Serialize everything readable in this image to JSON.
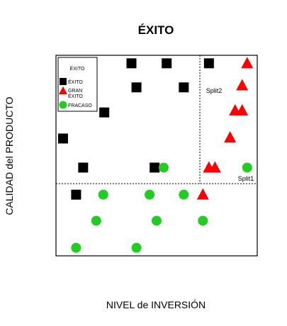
{
  "chart_data": {
    "type": "scatter",
    "title": "ÉXITO",
    "xlabel": "NIVEL de INVERSIÓN",
    "ylabel": "CALIDAD del PRODUCTO",
    "xlim": [
      0,
      20
    ],
    "ylim": [
      0,
      20
    ],
    "grid": false,
    "legend": {
      "title": "ÉXITO",
      "placement": "top-left",
      "entries": [
        {
          "label": "ÉXITO",
          "shape": "square",
          "color": "#000000"
        },
        {
          "label": "GRAN ÉXITO",
          "shape": "triangle",
          "color": "#ff0000"
        },
        {
          "label": "FRACASO",
          "shape": "circle",
          "color": "#22cc22"
        }
      ]
    },
    "splits": [
      {
        "label": "Split1",
        "orientation": "horizontal",
        "value": 7.2
      },
      {
        "label": "Split2",
        "orientation": "vertical",
        "value": 14.3,
        "from": 7.2,
        "to": 20
      }
    ],
    "series": [
      {
        "name": "ÉXITO",
        "shape": "square",
        "color": "#000000",
        "points": [
          {
            "x": 7.5,
            "y": 19.2
          },
          {
            "x": 11.0,
            "y": 19.2
          },
          {
            "x": 15.2,
            "y": 19.2
          },
          {
            "x": 8.0,
            "y": 16.8
          },
          {
            "x": 12.7,
            "y": 16.8
          },
          {
            "x": 4.8,
            "y": 14.3
          },
          {
            "x": 0.7,
            "y": 11.7
          },
          {
            "x": 2.7,
            "y": 8.8
          },
          {
            "x": 9.8,
            "y": 8.8
          },
          {
            "x": 2.0,
            "y": 6.1
          }
        ]
      },
      {
        "name": "GRAN ÉXITO",
        "shape": "triangle",
        "color": "#ff0000",
        "points": [
          {
            "x": 19.0,
            "y": 19.2
          },
          {
            "x": 18.5,
            "y": 17.0
          },
          {
            "x": 17.8,
            "y": 14.5
          },
          {
            "x": 18.5,
            "y": 14.5
          },
          {
            "x": 17.3,
            "y": 11.8
          },
          {
            "x": 15.2,
            "y": 8.8
          },
          {
            "x": 15.8,
            "y": 8.8
          },
          {
            "x": 14.6,
            "y": 6.1
          }
        ]
      },
      {
        "name": "FRACASO",
        "shape": "circle",
        "color": "#22cc22",
        "points": [
          {
            "x": 10.7,
            "y": 8.8
          },
          {
            "x": 19.0,
            "y": 8.8
          },
          {
            "x": 4.7,
            "y": 6.1
          },
          {
            "x": 9.3,
            "y": 6.1
          },
          {
            "x": 12.7,
            "y": 6.1
          },
          {
            "x": 4.0,
            "y": 3.5
          },
          {
            "x": 10.0,
            "y": 3.5
          },
          {
            "x": 14.6,
            "y": 3.5
          },
          {
            "x": 2.0,
            "y": 0.8
          },
          {
            "x": 8.0,
            "y": 0.8
          }
        ]
      }
    ]
  }
}
